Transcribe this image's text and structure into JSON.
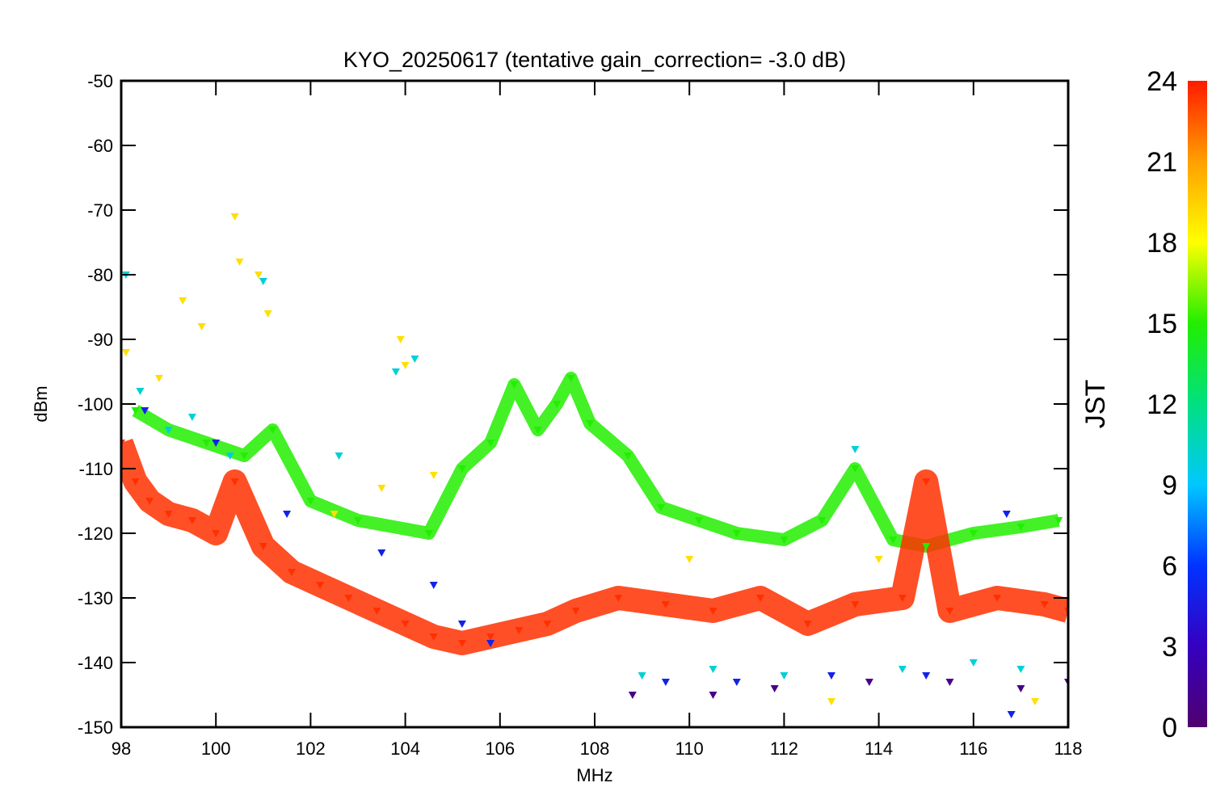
{
  "chart_data": {
    "type": "scatter",
    "title": "KYO_20250617 (tentative gain_correction= -3.0 dB)",
    "xlabel": "MHz",
    "ylabel": "dBm",
    "xlim": [
      98,
      118
    ],
    "ylim": [
      -150,
      -50
    ],
    "xticks": [
      "98",
      "100",
      "102",
      "104",
      "106",
      "108",
      "110",
      "112",
      "114",
      "116",
      "118"
    ],
    "yticks": [
      "-50",
      "-60",
      "-70",
      "-80",
      "-90",
      "-100",
      "-110",
      "-120",
      "-130",
      "-140",
      "-150"
    ],
    "grid": false,
    "marker": "triangle-down",
    "colorbar": {
      "label": "JST",
      "range": [
        0,
        24
      ],
      "ticks": [
        "0",
        "3",
        "6",
        "9",
        "12",
        "15",
        "18",
        "21",
        "24"
      ],
      "colormap": "rainbow"
    },
    "series": [
      {
        "color_value": 23.5,
        "description_color": "#ff3300",
        "points": [
          [
            98.0,
            -106
          ],
          [
            98.3,
            -112
          ],
          [
            98.6,
            -115
          ],
          [
            99.0,
            -117
          ],
          [
            99.5,
            -118
          ],
          [
            100.0,
            -120
          ],
          [
            100.4,
            -112
          ],
          [
            101.0,
            -122
          ],
          [
            101.6,
            -126
          ],
          [
            102.2,
            -128
          ],
          [
            102.8,
            -130
          ],
          [
            103.4,
            -132
          ],
          [
            104.0,
            -134
          ],
          [
            104.6,
            -136
          ],
          [
            105.2,
            -137
          ],
          [
            105.8,
            -136
          ],
          [
            106.4,
            -135
          ],
          [
            107.0,
            -134
          ],
          [
            107.6,
            -132
          ],
          [
            108.5,
            -130
          ],
          [
            109.5,
            -131
          ],
          [
            110.5,
            -132
          ],
          [
            111.5,
            -130
          ],
          [
            112.5,
            -134
          ],
          [
            113.5,
            -131
          ],
          [
            114.5,
            -130
          ],
          [
            115.0,
            -112
          ],
          [
            115.5,
            -132
          ],
          [
            116.5,
            -130
          ],
          [
            117.5,
            -131
          ],
          [
            118.0,
            -132
          ]
        ]
      },
      {
        "color_value": 15,
        "description_color": "#33dd00",
        "points": [
          [
            98.3,
            -101
          ],
          [
            99.0,
            -104
          ],
          [
            99.8,
            -106
          ],
          [
            100.6,
            -108
          ],
          [
            101.2,
            -104
          ],
          [
            102.0,
            -115
          ],
          [
            103.0,
            -118
          ],
          [
            104.5,
            -120
          ],
          [
            105.2,
            -110
          ],
          [
            105.8,
            -106
          ],
          [
            106.3,
            -97
          ],
          [
            106.8,
            -104
          ],
          [
            107.2,
            -100
          ],
          [
            107.5,
            -96
          ],
          [
            107.9,
            -103
          ],
          [
            108.7,
            -108
          ],
          [
            109.4,
            -116
          ],
          [
            110.2,
            -118
          ],
          [
            111.0,
            -120
          ],
          [
            112.0,
            -121
          ],
          [
            112.8,
            -118
          ],
          [
            113.5,
            -110
          ],
          [
            114.3,
            -121
          ],
          [
            115.0,
            -122
          ],
          [
            116.0,
            -120
          ],
          [
            117.0,
            -119
          ],
          [
            117.8,
            -118
          ]
        ]
      },
      {
        "color_value": 19,
        "description_color": "#ffee00",
        "points": [
          [
            98.1,
            -92
          ],
          [
            98.8,
            -96
          ],
          [
            99.3,
            -84
          ],
          [
            99.7,
            -88
          ],
          [
            100.4,
            -71
          ],
          [
            100.5,
            -78
          ],
          [
            100.9,
            -80
          ],
          [
            101.1,
            -86
          ],
          [
            102.5,
            -117
          ],
          [
            103.5,
            -113
          ],
          [
            103.9,
            -90
          ],
          [
            104.0,
            -94
          ],
          [
            104.6,
            -111
          ],
          [
            110.0,
            -124
          ],
          [
            113.0,
            -146
          ],
          [
            114.0,
            -124
          ],
          [
            117.3,
            -146
          ]
        ]
      },
      {
        "color_value": 10,
        "description_color": "#00dddd",
        "points": [
          [
            98.1,
            -80
          ],
          [
            98.4,
            -98
          ],
          [
            99.0,
            -104
          ],
          [
            99.5,
            -102
          ],
          [
            100.3,
            -108
          ],
          [
            101.0,
            -81
          ],
          [
            102.6,
            -108
          ],
          [
            103.8,
            -95
          ],
          [
            104.2,
            -93
          ],
          [
            109.0,
            -142
          ],
          [
            110.5,
            -141
          ],
          [
            112.0,
            -142
          ],
          [
            113.5,
            -107
          ],
          [
            114.5,
            -141
          ],
          [
            116.0,
            -140
          ],
          [
            117.0,
            -141
          ]
        ]
      },
      {
        "color_value": 5,
        "description_color": "#0033ff",
        "points": [
          [
            98.5,
            -101
          ],
          [
            100.0,
            -106
          ],
          [
            101.5,
            -117
          ],
          [
            103.5,
            -123
          ],
          [
            104.6,
            -128
          ],
          [
            105.2,
            -134
          ],
          [
            105.8,
            -137
          ],
          [
            109.5,
            -143
          ],
          [
            111.0,
            -143
          ],
          [
            113.0,
            -142
          ],
          [
            115.0,
            -142
          ],
          [
            116.7,
            -117
          ],
          [
            116.8,
            -148
          ]
        ]
      },
      {
        "color_value": 1,
        "description_color": "#660099",
        "points": [
          [
            108.8,
            -145
          ],
          [
            110.5,
            -145
          ],
          [
            111.8,
            -144
          ],
          [
            113.8,
            -143
          ],
          [
            115.5,
            -143
          ],
          [
            117.0,
            -144
          ],
          [
            118.0,
            -143
          ]
        ]
      }
    ]
  }
}
